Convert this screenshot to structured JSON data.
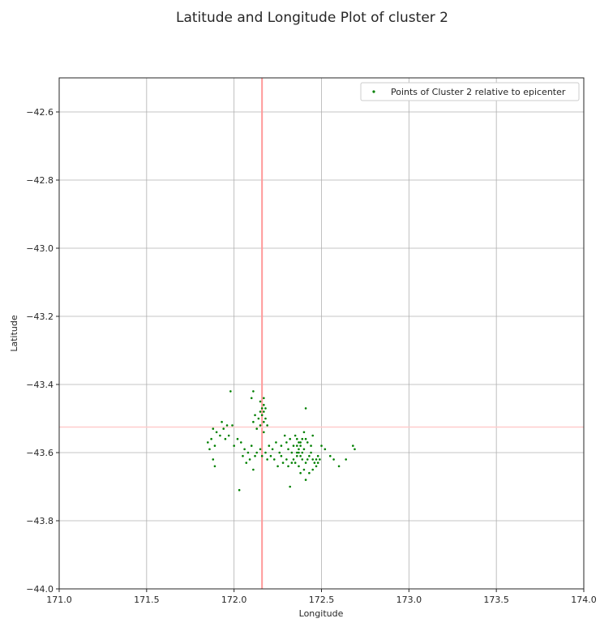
{
  "chart_data": {
    "type": "scatter",
    "title": "Latitude and Longitude Plot of cluster 2",
    "xlabel": "Longitude",
    "ylabel": "Latitude",
    "xlim": [
      171.0,
      174.0
    ],
    "ylim": [
      -44.0,
      -42.5
    ],
    "xticks": [
      "171.0",
      "171.5",
      "172.0",
      "172.5",
      "173.0",
      "173.5",
      "174.0"
    ],
    "yticks": [
      "−42.6",
      "−42.8",
      "−43.0",
      "−43.2",
      "−43.4",
      "−43.6",
      "−43.8",
      "−44.0"
    ],
    "grid": true,
    "legend": {
      "position": "top-right",
      "entries": [
        "Points of Cluster 2 relative to epicenter"
      ]
    },
    "reference_lines": {
      "vertical_x": 172.16,
      "horizontal_y": -43.525,
      "color": "#ff9999"
    },
    "series": [
      {
        "name": "Points of Cluster 2 relative to epicenter",
        "color": "#008000",
        "points": [
          [
            171.98,
            -43.42
          ],
          [
            172.11,
            -43.42
          ],
          [
            172.1,
            -43.44
          ],
          [
            172.17,
            -43.44
          ],
          [
            172.15,
            -43.45
          ],
          [
            172.17,
            -43.46
          ],
          [
            172.16,
            -43.47
          ],
          [
            172.18,
            -43.47
          ],
          [
            172.17,
            -43.48
          ],
          [
            172.15,
            -43.48
          ],
          [
            172.12,
            -43.49
          ],
          [
            172.16,
            -43.49
          ],
          [
            172.18,
            -43.5
          ],
          [
            172.14,
            -43.5
          ],
          [
            172.17,
            -43.51
          ],
          [
            172.11,
            -43.51
          ],
          [
            172.15,
            -43.52
          ],
          [
            172.19,
            -43.52
          ],
          [
            172.13,
            -43.53
          ],
          [
            172.17,
            -43.54
          ],
          [
            172.41,
            -43.47
          ],
          [
            171.93,
            -43.51
          ],
          [
            171.96,
            -43.52
          ],
          [
            171.99,
            -43.52
          ],
          [
            171.88,
            -43.53
          ],
          [
            171.94,
            -43.53
          ],
          [
            171.9,
            -43.54
          ],
          [
            171.97,
            -43.55
          ],
          [
            171.92,
            -43.55
          ],
          [
            171.87,
            -43.56
          ],
          [
            171.95,
            -43.56
          ],
          [
            171.85,
            -43.57
          ],
          [
            171.89,
            -43.58
          ],
          [
            171.86,
            -43.59
          ],
          [
            171.88,
            -43.62
          ],
          [
            171.89,
            -43.64
          ],
          [
            172.03,
            -43.71
          ],
          [
            172.02,
            -43.56
          ],
          [
            172.04,
            -43.57
          ],
          [
            172.06,
            -43.59
          ],
          [
            172.05,
            -43.61
          ],
          [
            172.08,
            -43.6
          ],
          [
            172.09,
            -43.62
          ],
          [
            172.07,
            -43.63
          ],
          [
            172.11,
            -43.65
          ],
          [
            172.13,
            -43.6
          ],
          [
            172.12,
            -43.61
          ],
          [
            172.15,
            -43.59
          ],
          [
            172.18,
            -43.6
          ],
          [
            172.2,
            -43.58
          ],
          [
            172.22,
            -43.59
          ],
          [
            172.21,
            -43.61
          ],
          [
            172.24,
            -43.57
          ],
          [
            172.23,
            -43.62
          ],
          [
            172.25,
            -43.64
          ],
          [
            172.26,
            -43.6
          ],
          [
            172.27,
            -43.58
          ],
          [
            172.28,
            -43.63
          ],
          [
            172.29,
            -43.55
          ],
          [
            172.3,
            -43.57
          ],
          [
            172.31,
            -43.59
          ],
          [
            172.32,
            -43.56
          ],
          [
            172.33,
            -43.6
          ],
          [
            172.34,
            -43.58
          ],
          [
            172.32,
            -43.7
          ],
          [
            172.35,
            -43.55
          ],
          [
            172.36,
            -43.56
          ],
          [
            172.37,
            -43.57
          ],
          [
            172.38,
            -43.58
          ],
          [
            172.39,
            -43.56
          ],
          [
            172.37,
            -43.59
          ],
          [
            172.36,
            -43.6
          ],
          [
            172.38,
            -43.61
          ],
          [
            172.4,
            -43.59
          ],
          [
            172.39,
            -43.62
          ],
          [
            172.35,
            -43.63
          ],
          [
            172.37,
            -43.64
          ],
          [
            172.4,
            -43.65
          ],
          [
            172.38,
            -43.66
          ],
          [
            172.41,
            -43.63
          ],
          [
            172.42,
            -43.62
          ],
          [
            172.43,
            -43.61
          ],
          [
            172.44,
            -43.6
          ],
          [
            172.45,
            -43.62
          ],
          [
            172.46,
            -43.63
          ],
          [
            172.47,
            -43.62
          ],
          [
            172.48,
            -43.61
          ],
          [
            172.49,
            -43.62
          ],
          [
            172.48,
            -43.63
          ],
          [
            172.47,
            -43.64
          ],
          [
            172.41,
            -43.68
          ],
          [
            172.43,
            -43.66
          ],
          [
            172.45,
            -43.65
          ],
          [
            172.5,
            -43.58
          ],
          [
            172.52,
            -43.59
          ],
          [
            172.55,
            -43.61
          ],
          [
            172.57,
            -43.62
          ],
          [
            172.6,
            -43.64
          ],
          [
            172.64,
            -43.62
          ],
          [
            172.68,
            -43.58
          ],
          [
            172.69,
            -43.59
          ],
          [
            172.36,
            -43.58
          ],
          [
            172.37,
            -43.6
          ],
          [
            172.38,
            -43.57
          ],
          [
            172.36,
            -43.61
          ],
          [
            172.34,
            -43.62
          ],
          [
            172.3,
            -43.62
          ],
          [
            172.27,
            -43.61
          ],
          [
            172.19,
            -43.62
          ],
          [
            172.16,
            -43.61
          ],
          [
            172.1,
            -43.58
          ],
          [
            172.0,
            -43.58
          ],
          [
            172.45,
            -43.55
          ],
          [
            172.42,
            -43.57
          ],
          [
            172.44,
            -43.58
          ],
          [
            172.33,
            -43.63
          ],
          [
            172.31,
            -43.64
          ],
          [
            172.4,
            -43.54
          ],
          [
            172.41,
            -43.56
          ],
          [
            172.39,
            -43.6
          ]
        ]
      }
    ]
  }
}
